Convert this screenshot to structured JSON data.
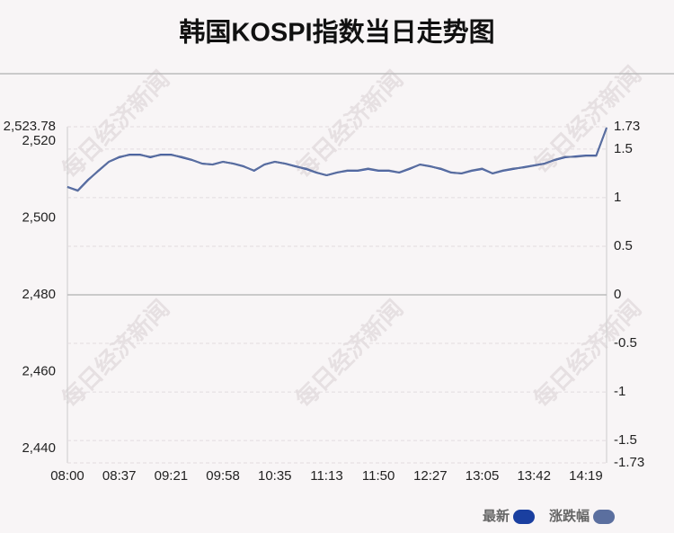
{
  "chart_data": {
    "type": "line",
    "title": "韩国KOSPI指数当日走势图",
    "watermark": "每日经济新闻",
    "categories": [
      "08:00",
      null,
      null,
      null,
      null,
      "08:37",
      null,
      null,
      null,
      null,
      "09:21",
      null,
      null,
      null,
      null,
      "09:58",
      null,
      null,
      null,
      null,
      "10:35",
      null,
      null,
      null,
      null,
      "11:13",
      null,
      null,
      null,
      null,
      "11:50",
      null,
      null,
      null,
      null,
      "12:27",
      null,
      null,
      null,
      null,
      "13:05",
      null,
      null,
      null,
      null,
      "13:42",
      null,
      null,
      null,
      null,
      "14:19",
      null,
      null
    ],
    "series": [
      {
        "name": "最新",
        "color": "#1a3fa0",
        "values": [
          2508.1,
          2507.16,
          2509.97,
          2512.31,
          2514.65,
          2515.82,
          2516.52,
          2516.52,
          2515.82,
          2516.52,
          2516.52,
          2515.82,
          2515.12,
          2514.18,
          2513.95,
          2514.65,
          2514.18,
          2513.48,
          2512.31,
          2513.95,
          2514.65,
          2514.18,
          2513.48,
          2512.78,
          2511.84,
          2511.14,
          2511.84,
          2512.31,
          2512.31,
          2512.78,
          2512.31,
          2512.31,
          2511.84,
          2512.78,
          2513.95,
          2513.48,
          2512.78,
          2511.84,
          2511.61,
          2512.31,
          2512.78,
          2511.61,
          2512.31,
          2512.78,
          2513.25,
          2513.71,
          2514.18,
          2515.12,
          2515.82,
          2516.05,
          2516.29,
          2516.29,
          2523.5
        ]
      },
      {
        "name": "涨跌幅",
        "color": "#5b6f9f",
        "axis": "y2",
        "values": [
          1.11,
          1.07,
          1.18,
          1.28,
          1.37,
          1.42,
          1.44,
          1.44,
          1.42,
          1.44,
          1.44,
          1.42,
          1.39,
          1.35,
          1.34,
          1.37,
          1.35,
          1.32,
          1.28,
          1.34,
          1.37,
          1.35,
          1.32,
          1.3,
          1.26,
          1.23,
          1.26,
          1.28,
          1.28,
          1.3,
          1.28,
          1.28,
          1.26,
          1.3,
          1.34,
          1.32,
          1.3,
          1.26,
          1.25,
          1.28,
          1.3,
          1.25,
          1.28,
          1.3,
          1.31,
          1.33,
          1.35,
          1.39,
          1.42,
          1.42,
          1.43,
          1.43,
          1.72
        ]
      }
    ],
    "ylim": [
      2436.22,
      2523.78
    ],
    "yticks": [
      {
        "value": 2523.78,
        "label": "2,523.78"
      },
      {
        "value": 2520,
        "label": "2,520"
      },
      {
        "value": 2500,
        "label": "2,500"
      },
      {
        "value": 2480,
        "label": "2,480"
      },
      {
        "value": 2460,
        "label": "2,460"
      },
      {
        "value": 2440,
        "label": "2,440"
      }
    ],
    "y2lim": [
      -1.73,
      1.73
    ],
    "y2ticks": [
      1.73,
      1.5,
      1,
      0.5,
      0,
      -0.5,
      -1,
      -1.5,
      -1.73
    ],
    "grid": true,
    "legend": "bottom-right"
  }
}
